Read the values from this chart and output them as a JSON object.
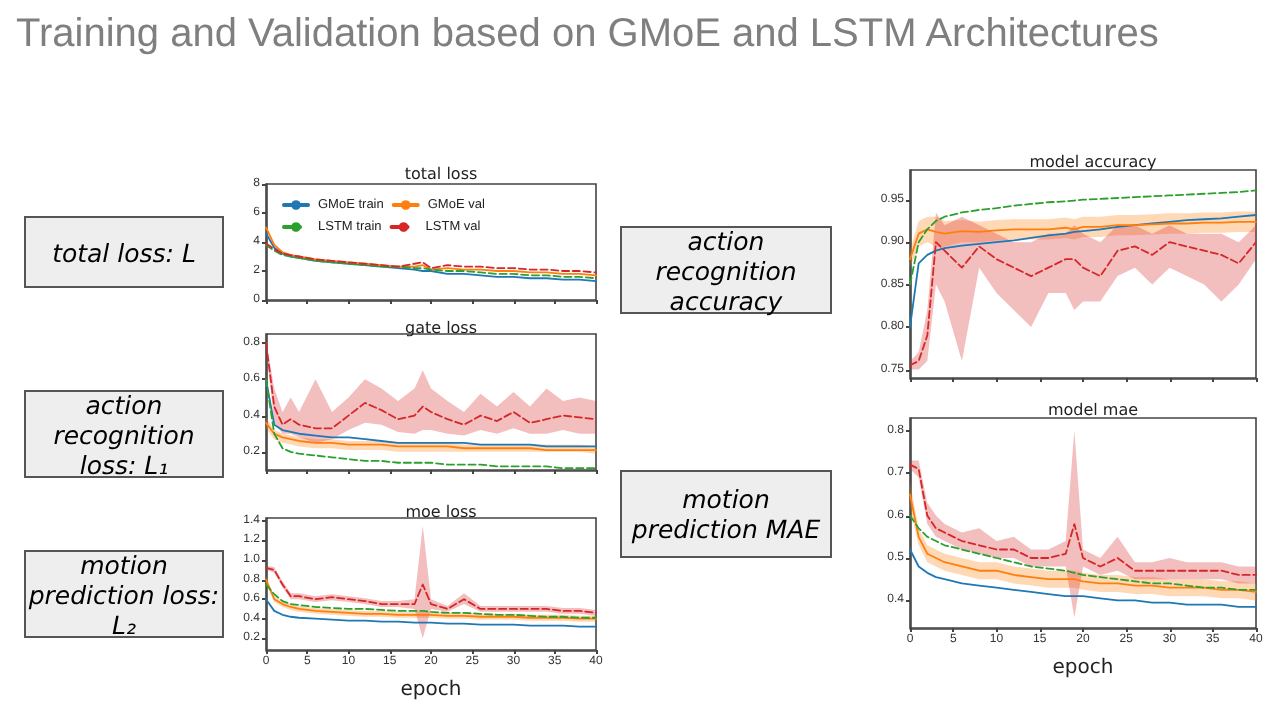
{
  "chart_data": [
    {
      "type": "other",
      "title": "Training and Validation based on GMoE and LSTM Architectures"
    },
    {
      "type": "line",
      "title": "total loss",
      "annotations": [
        "total loss: L"
      ],
      "legend": "top left",
      "tick_labels": "y",
      "xlim": [
        0,
        40
      ],
      "xticks": [
        0,
        5,
        10,
        15,
        20,
        25,
        30,
        35,
        40
      ],
      "ylim": [
        0,
        8
      ],
      "yticks": [
        0,
        2,
        4,
        6,
        8
      ],
      "x": [
        0,
        1,
        2,
        3,
        4,
        6,
        8,
        10,
        12,
        14,
        16,
        18,
        19,
        20,
        22,
        24,
        26,
        28,
        30,
        32,
        34,
        36,
        38,
        40
      ],
      "series": [
        {
          "name": "GMoE train",
          "color": "#1f77b4",
          "line_style": "solid",
          "values": [
            4.6,
            3.6,
            3.2,
            3.0,
            2.9,
            2.7,
            2.6,
            2.5,
            2.4,
            2.3,
            2.2,
            2.1,
            2.0,
            2.0,
            1.8,
            1.8,
            1.7,
            1.6,
            1.6,
            1.5,
            1.5,
            1.4,
            1.4,
            1.3
          ]
        },
        {
          "name": "GMoE val",
          "color": "#ff7f0e",
          "line_style": "solid",
          "values": [
            5.0,
            3.8,
            3.3,
            3.1,
            3.0,
            2.8,
            2.7,
            2.6,
            2.5,
            2.4,
            2.3,
            2.3,
            2.4,
            2.1,
            2.2,
            2.1,
            2.1,
            2.0,
            2.0,
            1.9,
            1.9,
            1.8,
            1.8,
            1.7
          ]
        },
        {
          "name": "LSTM train",
          "color": "#2ca02c",
          "line_style": "dashed",
          "values": [
            3.8,
            3.4,
            3.1,
            3.0,
            2.9,
            2.7,
            2.6,
            2.5,
            2.4,
            2.3,
            2.3,
            2.2,
            2.2,
            2.1,
            2.0,
            2.0,
            1.9,
            1.8,
            1.8,
            1.7,
            1.7,
            1.6,
            1.6,
            1.5
          ]
        },
        {
          "name": "LSTM val",
          "color": "#d62728",
          "line_style": "dashed",
          "values": [
            3.9,
            3.5,
            3.2,
            3.1,
            3.0,
            2.8,
            2.7,
            2.6,
            2.5,
            2.4,
            2.3,
            2.5,
            2.6,
            2.2,
            2.4,
            2.3,
            2.3,
            2.2,
            2.2,
            2.1,
            2.1,
            2.0,
            2.0,
            1.9
          ]
        }
      ]
    },
    {
      "type": "line",
      "title": "gate loss",
      "annotations": [
        "action recognition loss: L₁"
      ],
      "tick_labels": "y",
      "xlim": [
        0,
        40
      ],
      "xticks": [
        0,
        5,
        10,
        15,
        20,
        25,
        30,
        35,
        40
      ],
      "ylim": [
        0.1,
        0.85
      ],
      "yticks": [
        0.2,
        0.4,
        0.6,
        0.8
      ],
      "x": [
        0,
        1,
        2,
        3,
        4,
        6,
        8,
        10,
        12,
        14,
        16,
        18,
        19,
        20,
        22,
        24,
        26,
        28,
        30,
        32,
        34,
        36,
        38,
        40
      ],
      "series": [
        {
          "color": "#1f77b4",
          "line_style": "solid",
          "values": [
            0.6,
            0.35,
            0.32,
            0.31,
            0.3,
            0.29,
            0.28,
            0.28,
            0.27,
            0.26,
            0.25,
            0.25,
            0.25,
            0.25,
            0.25,
            0.25,
            0.24,
            0.24,
            0.24,
            0.24,
            0.23,
            0.23,
            0.23,
            0.23
          ]
        },
        {
          "color": "#ff7f0e",
          "line_style": "solid",
          "values": [
            0.36,
            0.3,
            0.28,
            0.27,
            0.26,
            0.25,
            0.25,
            0.24,
            0.24,
            0.24,
            0.23,
            0.23,
            0.23,
            0.23,
            0.23,
            0.22,
            0.22,
            0.22,
            0.22,
            0.22,
            0.21,
            0.21,
            0.21,
            0.21
          ],
          "lower": [
            0.33,
            0.27,
            0.25,
            0.24,
            0.23,
            0.22,
            0.22,
            0.21,
            0.21,
            0.21,
            0.2,
            0.2,
            0.2,
            0.2,
            0.2,
            0.2,
            0.2,
            0.2,
            0.2,
            0.2,
            0.2,
            0.2,
            0.2,
            0.19
          ],
          "upper": [
            0.39,
            0.32,
            0.3,
            0.29,
            0.28,
            0.27,
            0.27,
            0.26,
            0.26,
            0.26,
            0.25,
            0.25,
            0.25,
            0.25,
            0.25,
            0.24,
            0.24,
            0.24,
            0.24,
            0.24,
            0.24,
            0.24,
            0.24,
            0.23
          ]
        },
        {
          "color": "#2ca02c",
          "line_style": "dashed",
          "values": [
            0.6,
            0.3,
            0.22,
            0.2,
            0.19,
            0.18,
            0.17,
            0.16,
            0.15,
            0.15,
            0.14,
            0.14,
            0.14,
            0.14,
            0.13,
            0.13,
            0.13,
            0.12,
            0.12,
            0.12,
            0.12,
            0.11,
            0.11,
            0.11
          ]
        },
        {
          "color": "#d62728",
          "line_style": "dashed",
          "values": [
            0.8,
            0.45,
            0.35,
            0.38,
            0.35,
            0.33,
            0.33,
            0.4,
            0.47,
            0.43,
            0.38,
            0.4,
            0.45,
            0.42,
            0.38,
            0.35,
            0.4,
            0.37,
            0.42,
            0.36,
            0.38,
            0.4,
            0.39,
            0.38
          ],
          "lower": [
            0.78,
            0.36,
            0.3,
            0.3,
            0.28,
            0.25,
            0.27,
            0.32,
            0.36,
            0.35,
            0.31,
            0.3,
            0.32,
            0.32,
            0.3,
            0.29,
            0.32,
            0.3,
            0.33,
            0.3,
            0.3,
            0.32,
            0.3,
            0.3
          ],
          "upper": [
            0.82,
            0.55,
            0.42,
            0.5,
            0.42,
            0.6,
            0.42,
            0.5,
            0.6,
            0.55,
            0.48,
            0.55,
            0.65,
            0.55,
            0.48,
            0.42,
            0.52,
            0.45,
            0.53,
            0.45,
            0.55,
            0.48,
            0.5,
            0.48
          ]
        }
      ]
    },
    {
      "type": "line",
      "title": "moe loss",
      "xlabel": "epoch",
      "annotations": [
        "motion prediction loss: L₂"
      ],
      "xlim": [
        0,
        40
      ],
      "xticks": [
        0,
        5,
        10,
        15,
        20,
        25,
        30,
        35,
        40
      ],
      "ylim": [
        0.08,
        1.43
      ],
      "yticks": [
        0.2,
        0.4,
        0.6,
        0.8,
        {
          "value": 1.0,
          "label": "1.0"
        },
        1.2,
        1.4
      ],
      "x": [
        0,
        1,
        2,
        3,
        4,
        6,
        8,
        10,
        12,
        14,
        16,
        18,
        19,
        20,
        22,
        24,
        26,
        28,
        30,
        32,
        34,
        36,
        38,
        40
      ],
      "series": [
        {
          "color": "#1f77b4",
          "line_style": "solid",
          "values": [
            0.6,
            0.48,
            0.44,
            0.42,
            0.41,
            0.4,
            0.39,
            0.38,
            0.38,
            0.37,
            0.37,
            0.36,
            0.36,
            0.36,
            0.35,
            0.35,
            0.34,
            0.34,
            0.34,
            0.33,
            0.33,
            0.33,
            0.32,
            0.32
          ]
        },
        {
          "color": "#ff7f0e",
          "line_style": "solid",
          "values": [
            0.8,
            0.6,
            0.55,
            0.52,
            0.5,
            0.48,
            0.47,
            0.46,
            0.45,
            0.45,
            0.44,
            0.44,
            0.44,
            0.44,
            0.43,
            0.43,
            0.42,
            0.42,
            0.42,
            0.41,
            0.41,
            0.41,
            0.4,
            0.4
          ],
          "lower": [
            0.76,
            0.57,
            0.52,
            0.49,
            0.47,
            0.45,
            0.44,
            0.43,
            0.42,
            0.42,
            0.41,
            0.41,
            0.41,
            0.41,
            0.4,
            0.4,
            0.39,
            0.39,
            0.39,
            0.38,
            0.38,
            0.38,
            0.37,
            0.37
          ],
          "upper": [
            0.84,
            0.63,
            0.58,
            0.55,
            0.53,
            0.51,
            0.5,
            0.49,
            0.48,
            0.48,
            0.47,
            0.47,
            0.47,
            0.47,
            0.46,
            0.46,
            0.45,
            0.45,
            0.45,
            0.44,
            0.44,
            0.44,
            0.43,
            0.43
          ]
        },
        {
          "color": "#2ca02c",
          "line_style": "dashed",
          "values": [
            0.75,
            0.65,
            0.58,
            0.55,
            0.54,
            0.52,
            0.51,
            0.5,
            0.5,
            0.49,
            0.48,
            0.48,
            0.48,
            0.47,
            0.46,
            0.46,
            0.45,
            0.44,
            0.44,
            0.43,
            0.42,
            0.42,
            0.41,
            0.41
          ]
        },
        {
          "color": "#d62728",
          "line_style": "dashed",
          "values": [
            0.92,
            0.9,
            0.75,
            0.63,
            0.63,
            0.6,
            0.62,
            0.6,
            0.58,
            0.55,
            0.55,
            0.55,
            0.75,
            0.55,
            0.5,
            0.6,
            0.5,
            0.5,
            0.5,
            0.5,
            0.5,
            0.48,
            0.48,
            0.46
          ],
          "lower": [
            0.9,
            0.87,
            0.72,
            0.6,
            0.6,
            0.57,
            0.59,
            0.57,
            0.55,
            0.52,
            0.52,
            0.5,
            0.2,
            0.5,
            0.47,
            0.55,
            0.47,
            0.47,
            0.47,
            0.47,
            0.47,
            0.45,
            0.45,
            0.43
          ],
          "upper": [
            0.94,
            0.93,
            0.78,
            0.66,
            0.66,
            0.63,
            0.65,
            0.63,
            0.61,
            0.58,
            0.58,
            0.6,
            1.35,
            0.6,
            0.53,
            0.66,
            0.53,
            0.53,
            0.53,
            0.53,
            0.53,
            0.51,
            0.51,
            0.49
          ]
        }
      ]
    },
    {
      "type": "line",
      "title": "model accuracy",
      "annotations": [
        "action recognition accuracy"
      ],
      "tick_labels": "y",
      "xlim": [
        0,
        40
      ],
      "xticks": [
        0,
        5,
        10,
        15,
        20,
        25,
        30,
        35,
        40
      ],
      "ylim": [
        0.74,
        0.985
      ],
      "yticks": [
        0.75,
        {
          "value": 0.8,
          "label": "0.80"
        },
        0.85,
        {
          "value": 0.9,
          "label": "0.90"
        },
        0.95
      ],
      "x": [
        0,
        1,
        2,
        3,
        4,
        6,
        8,
        10,
        12,
        14,
        16,
        18,
        19,
        20,
        22,
        24,
        26,
        28,
        30,
        32,
        34,
        36,
        38,
        40
      ],
      "series": [
        {
          "color": "#1f77b4",
          "line_style": "solid",
          "values": [
            0.8,
            0.875,
            0.885,
            0.89,
            0.893,
            0.896,
            0.898,
            0.9,
            0.902,
            0.905,
            0.908,
            0.91,
            0.912,
            0.913,
            0.915,
            0.918,
            0.92,
            0.922,
            0.924,
            0.926,
            0.927,
            0.928,
            0.93,
            0.932
          ]
        },
        {
          "color": "#ff7f0e",
          "line_style": "solid",
          "values": [
            0.88,
            0.91,
            0.915,
            0.912,
            0.91,
            0.913,
            0.912,
            0.914,
            0.915,
            0.915,
            0.915,
            0.917,
            0.915,
            0.918,
            0.918,
            0.92,
            0.92,
            0.921,
            0.922,
            0.922,
            0.923,
            0.923,
            0.924,
            0.924
          ],
          "lower": [
            0.87,
            0.895,
            0.9,
            0.895,
            0.895,
            0.9,
            0.9,
            0.902,
            0.903,
            0.903,
            0.903,
            0.905,
            0.903,
            0.906,
            0.906,
            0.908,
            0.908,
            0.909,
            0.91,
            0.91,
            0.911,
            0.911,
            0.912,
            0.912
          ],
          "upper": [
            0.89,
            0.925,
            0.93,
            0.93,
            0.925,
            0.926,
            0.924,
            0.926,
            0.927,
            0.927,
            0.927,
            0.929,
            0.927,
            0.93,
            0.93,
            0.932,
            0.932,
            0.933,
            0.934,
            0.934,
            0.935,
            0.935,
            0.936,
            0.936
          ]
        },
        {
          "color": "#2ca02c",
          "line_style": "dashed",
          "values": [
            0.85,
            0.9,
            0.915,
            0.925,
            0.93,
            0.935,
            0.938,
            0.94,
            0.943,
            0.945,
            0.947,
            0.948,
            0.949,
            0.95,
            0.951,
            0.952,
            0.953,
            0.954,
            0.955,
            0.956,
            0.957,
            0.958,
            0.959,
            0.961
          ]
        },
        {
          "color": "#d62728",
          "line_style": "dashed",
          "values": [
            0.755,
            0.76,
            0.79,
            0.9,
            0.89,
            0.87,
            0.895,
            0.88,
            0.87,
            0.86,
            0.87,
            0.88,
            0.88,
            0.87,
            0.86,
            0.89,
            0.895,
            0.885,
            0.9,
            0.895,
            0.89,
            0.885,
            0.875,
            0.9
          ],
          "lower": [
            0.75,
            0.75,
            0.76,
            0.85,
            0.83,
            0.76,
            0.87,
            0.84,
            0.82,
            0.8,
            0.84,
            0.84,
            0.82,
            0.83,
            0.83,
            0.86,
            0.87,
            0.85,
            0.87,
            0.86,
            0.85,
            0.83,
            0.85,
            0.88
          ],
          "upper": [
            0.76,
            0.77,
            0.82,
            0.935,
            0.92,
            0.93,
            0.92,
            0.91,
            0.9,
            0.9,
            0.91,
            0.91,
            0.92,
            0.91,
            0.9,
            0.92,
            0.92,
            0.91,
            0.92,
            0.91,
            0.91,
            0.91,
            0.9,
            0.92
          ]
        }
      ]
    },
    {
      "type": "line",
      "title": "model mae",
      "xlabel": "epoch",
      "annotations": [
        "motion prediction MAE"
      ],
      "xlim": [
        0,
        40
      ],
      "xticks": [
        0,
        5,
        10,
        15,
        20,
        25,
        30,
        35,
        40
      ],
      "ylim": [
        0.335,
        0.83
      ],
      "yticks": [
        0.4,
        0.5,
        0.6,
        0.7,
        0.8
      ],
      "x": [
        0,
        1,
        2,
        3,
        4,
        6,
        8,
        10,
        12,
        14,
        16,
        18,
        19,
        20,
        22,
        24,
        26,
        28,
        30,
        32,
        34,
        36,
        38,
        40
      ],
      "series": [
        {
          "color": "#1f77b4",
          "line_style": "solid",
          "values": [
            0.52,
            0.48,
            0.465,
            0.455,
            0.45,
            0.44,
            0.435,
            0.43,
            0.425,
            0.42,
            0.415,
            0.41,
            0.41,
            0.41,
            0.405,
            0.4,
            0.4,
            0.395,
            0.395,
            0.39,
            0.39,
            0.39,
            0.385,
            0.385
          ]
        },
        {
          "color": "#ff7f0e",
          "line_style": "solid",
          "values": [
            0.65,
            0.55,
            0.51,
            0.5,
            0.49,
            0.48,
            0.47,
            0.47,
            0.46,
            0.455,
            0.45,
            0.45,
            0.45,
            0.445,
            0.44,
            0.44,
            0.435,
            0.435,
            0.43,
            0.43,
            0.43,
            0.425,
            0.425,
            0.42
          ],
          "lower": [
            0.62,
            0.53,
            0.49,
            0.48,
            0.47,
            0.46,
            0.45,
            0.45,
            0.44,
            0.435,
            0.43,
            0.43,
            0.43,
            0.425,
            0.42,
            0.42,
            0.415,
            0.415,
            0.41,
            0.41,
            0.41,
            0.405,
            0.405,
            0.4
          ],
          "upper": [
            0.68,
            0.57,
            0.53,
            0.52,
            0.51,
            0.5,
            0.49,
            0.49,
            0.48,
            0.475,
            0.47,
            0.47,
            0.47,
            0.465,
            0.46,
            0.46,
            0.455,
            0.455,
            0.45,
            0.45,
            0.45,
            0.445,
            0.445,
            0.44
          ]
        },
        {
          "color": "#2ca02c",
          "line_style": "dashed",
          "values": [
            0.6,
            0.57,
            0.55,
            0.54,
            0.53,
            0.52,
            0.51,
            0.5,
            0.49,
            0.48,
            0.475,
            0.47,
            0.465,
            0.46,
            0.455,
            0.45,
            0.445,
            0.44,
            0.44,
            0.435,
            0.43,
            0.43,
            0.425,
            0.425
          ]
        },
        {
          "color": "#d62728",
          "line_style": "dashed",
          "values": [
            0.72,
            0.71,
            0.6,
            0.57,
            0.56,
            0.54,
            0.53,
            0.52,
            0.52,
            0.5,
            0.5,
            0.51,
            0.58,
            0.5,
            0.48,
            0.5,
            0.47,
            0.47,
            0.47,
            0.47,
            0.47,
            0.47,
            0.46,
            0.46
          ],
          "lower": [
            0.71,
            0.69,
            0.58,
            0.55,
            0.54,
            0.52,
            0.51,
            0.5,
            0.5,
            0.48,
            0.48,
            0.48,
            0.36,
            0.48,
            0.46,
            0.47,
            0.45,
            0.45,
            0.45,
            0.45,
            0.45,
            0.45,
            0.44,
            0.44
          ],
          "upper": [
            0.73,
            0.73,
            0.63,
            0.6,
            0.58,
            0.56,
            0.57,
            0.54,
            0.55,
            0.52,
            0.52,
            0.54,
            0.8,
            0.52,
            0.5,
            0.55,
            0.49,
            0.49,
            0.5,
            0.49,
            0.49,
            0.49,
            0.48,
            0.48
          ]
        }
      ]
    }
  ]
}
